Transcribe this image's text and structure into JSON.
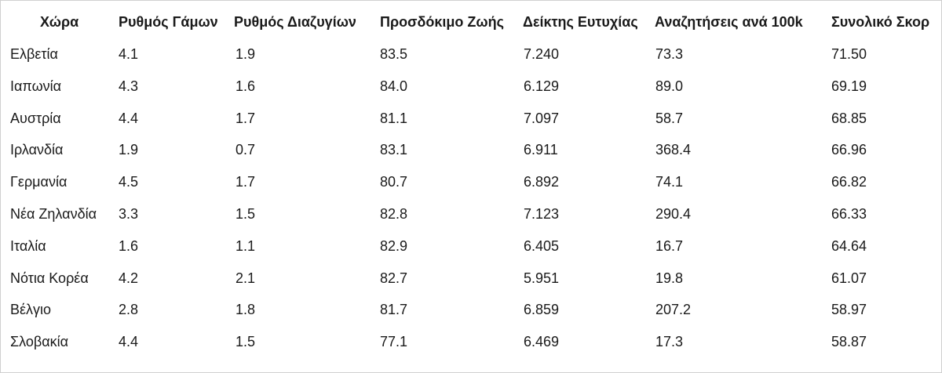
{
  "table": {
    "header": [
      "Χώρα",
      "Ρυθμός Γάμων",
      "Ρυθμός Διαζυγίων",
      "Προσδόκιμο Ζωής",
      "Δείκτης Ευτυχίας",
      "Αναζητήσεις ανά 100k",
      "Συνολικό Σκορ"
    ],
    "rows": [
      [
        "Ελβετία",
        "4.1",
        "1.9",
        "83.5",
        "7.240",
        "73.3",
        "71.50"
      ],
      [
        "Ιαπωνία",
        "4.3",
        "1.6",
        "84.0",
        "6.129",
        "89.0",
        "69.19"
      ],
      [
        "Αυστρία",
        "4.4",
        "1.7",
        "81.1",
        "7.097",
        "58.7",
        "68.85"
      ],
      [
        "Ιρλανδία",
        "1.9",
        "0.7",
        "83.1",
        "6.911",
        "368.4",
        "66.96"
      ],
      [
        "Γερμανία",
        "4.5",
        "1.7",
        "80.7",
        "6.892",
        "74.1",
        "66.82"
      ],
      [
        "Νέα Ζηλανδία",
        "3.3",
        "1.5",
        "82.8",
        "7.123",
        "290.4",
        "66.33"
      ],
      [
        "Ιταλία",
        "1.6",
        "1.1",
        "82.9",
        "6.405",
        "16.7",
        "64.64"
      ],
      [
        "Νότια Κορέα",
        "4.2",
        "2.1",
        "82.7",
        "5.951",
        "19.8",
        "61.07"
      ],
      [
        "Βέλγιο",
        "2.8",
        "1.8",
        "81.7",
        "6.859",
        "207.2",
        "58.97"
      ],
      [
        "Σλοβακία",
        "4.4",
        "1.5",
        "77.1",
        "6.469",
        "17.3",
        "58.87"
      ]
    ]
  }
}
